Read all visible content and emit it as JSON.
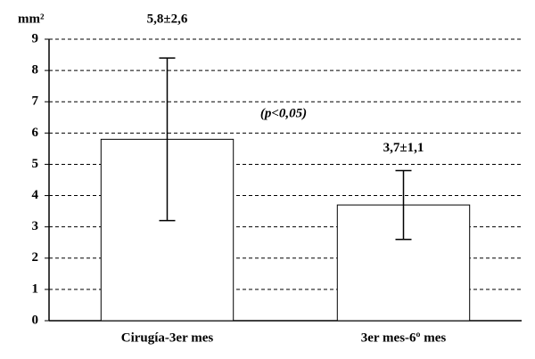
{
  "chart_data": {
    "type": "bar",
    "y_label": "mm²",
    "annotation": "(p<0,05)",
    "categories": [
      "Cirugía-3er mes",
      "3er mes-6º mes"
    ],
    "values": [
      5.8,
      3.7
    ],
    "errors": [
      2.6,
      1.1
    ],
    "value_labels": [
      "5,8±2,6",
      "3,7±1,1"
    ],
    "color": "#ffffff",
    "ylim": [
      0,
      9
    ],
    "yticks": [
      0,
      1,
      2,
      3,
      4,
      5,
      6,
      7,
      8,
      9
    ],
    "grid": true
  }
}
